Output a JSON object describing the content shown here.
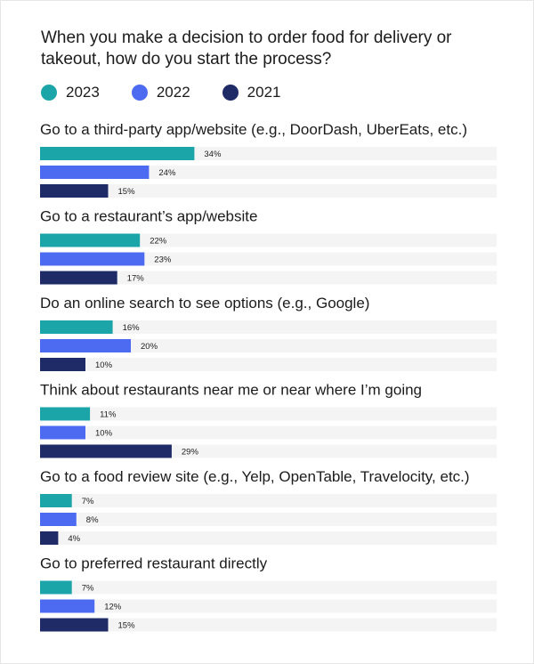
{
  "chart_data": {
    "type": "bar",
    "orientation": "horizontal",
    "title": "When you make a decision to order food for delivery or takeout, how do you start the process?",
    "legend_position": "top-left",
    "grid": false,
    "xlim": [
      0,
      100
    ],
    "value_suffix": "%",
    "categories": [
      "Go to a third-party app/website (e.g., DoorDash, UberEats, etc.)",
      "Go to a restaurant’s app/website",
      "Do an online search to see options (e.g., Google)",
      "Think about restaurants near me or near where I’m going",
      "Go to a food review site (e.g., Yelp, OpenTable, Travelocity, etc.)",
      "Go to preferred restaurant directly"
    ],
    "series": [
      {
        "name": "2023",
        "color": "#1ba5a8",
        "values": [
          34,
          22,
          16,
          11,
          7,
          7
        ]
      },
      {
        "name": "2022",
        "color": "#4d6bf0",
        "values": [
          24,
          23,
          20,
          10,
          8,
          12
        ]
      },
      {
        "name": "2021",
        "color": "#1f2b66",
        "values": [
          15,
          17,
          10,
          29,
          4,
          15
        ]
      }
    ],
    "track_color": "#f4f4f4"
  }
}
